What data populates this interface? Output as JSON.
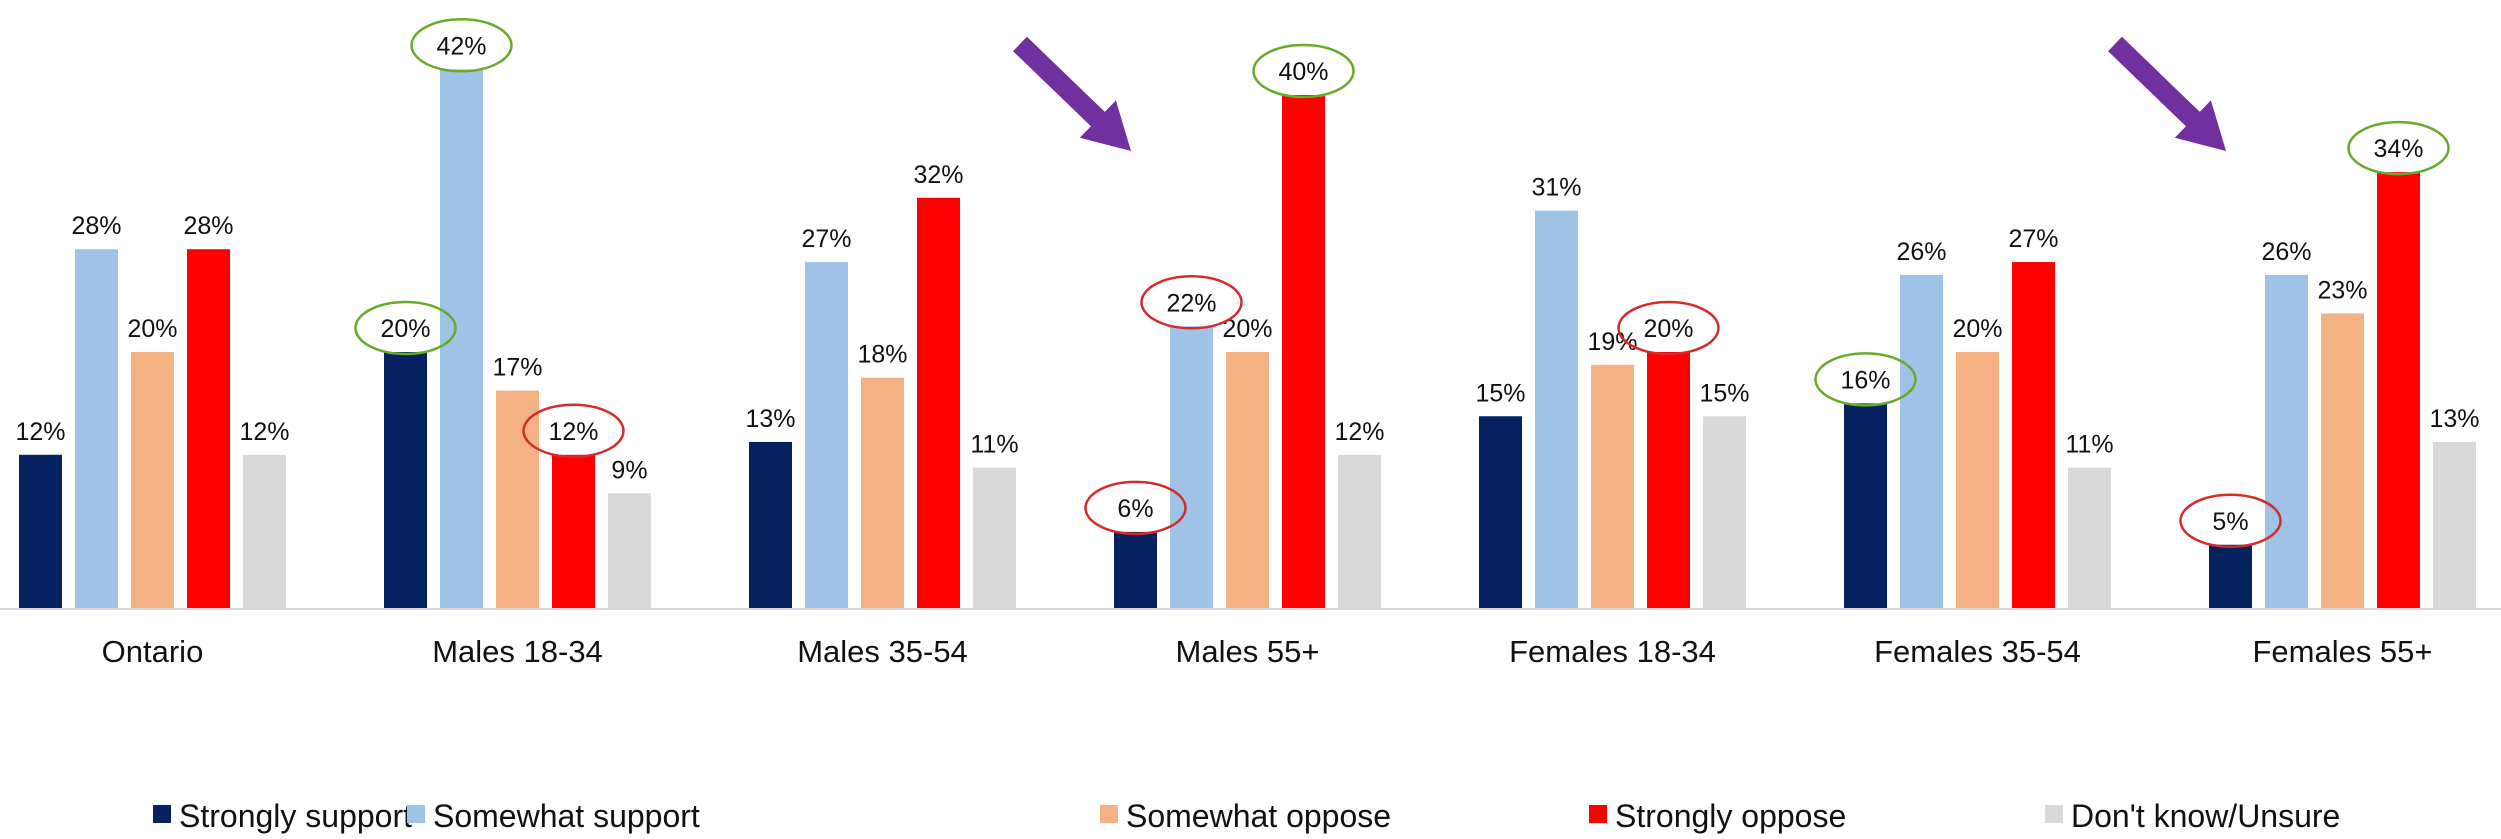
{
  "chart_data": {
    "type": "bar",
    "categories": [
      "Ontario",
      "Males 18-34",
      "Males 35-54",
      "Males 55+",
      "Females 18-34",
      "Females 35-54",
      "Females 55+"
    ],
    "series": [
      {
        "name": "Strongly support",
        "color": "#06215f",
        "values": [
          12,
          20,
          13,
          6,
          15,
          16,
          5
        ],
        "labels": [
          "12%",
          "20%",
          "13%",
          "6%",
          "15%",
          "16%",
          "5%"
        ]
      },
      {
        "name": "Somewhat support",
        "color": "#9fc3e7",
        "values": [
          28,
          42,
          27,
          22,
          31,
          26,
          26
        ],
        "labels": [
          "28%",
          "42%",
          "27%",
          "22%",
          "31%",
          "26%",
          "26%"
        ]
      },
      {
        "name": "Somewhat oppose",
        "color": "#f4b183",
        "values": [
          20,
          17,
          18,
          20,
          19,
          20,
          23
        ],
        "labels": [
          "20%",
          "17%",
          "18%",
          "20%",
          "19%",
          "20%",
          "23%"
        ]
      },
      {
        "name": "Strongly oppose",
        "color": "#ff0000",
        "values": [
          28,
          12,
          32,
          40,
          20,
          27,
          34
        ],
        "labels": [
          "28%",
          "12%",
          "32%",
          "40%",
          "20%",
          "27%",
          "34%"
        ]
      },
      {
        "name": "Don't know/Unsure",
        "color": "#d9d9d9",
        "values": [
          12,
          9,
          11,
          12,
          15,
          11,
          13
        ],
        "labels": [
          "12%",
          "9%",
          "11%",
          "12%",
          "15%",
          "11%",
          "13%"
        ]
      }
    ],
    "ylim": [
      0,
      45
    ],
    "legend_position": "bottom",
    "grid": false,
    "highlights": [
      {
        "category": "Males 18-34",
        "series": "Strongly support",
        "color": "#6aaa2a"
      },
      {
        "category": "Males 18-34",
        "series": "Somewhat support",
        "color": "#6aaa2a"
      },
      {
        "category": "Males 18-34",
        "series": "Strongly oppose",
        "color": "#d62b2b"
      },
      {
        "category": "Males 55+",
        "series": "Strongly support",
        "color": "#d62b2b"
      },
      {
        "category": "Males 55+",
        "series": "Somewhat support",
        "color": "#d62b2b"
      },
      {
        "category": "Males 55+",
        "series": "Strongly oppose",
        "color": "#6aaa2a"
      },
      {
        "category": "Females 18-34",
        "series": "Strongly oppose",
        "color": "#d62b2b"
      },
      {
        "category": "Females 35-54",
        "series": "Strongly support",
        "color": "#6aaa2a"
      },
      {
        "category": "Females 55+",
        "series": "Strongly support",
        "color": "#d62b2b"
      },
      {
        "category": "Females 55+",
        "series": "Strongly oppose",
        "color": "#6aaa2a"
      }
    ],
    "arrows": [
      {
        "category": "Males 55+",
        "color": "#7030a0"
      },
      {
        "category": "Females 55+",
        "color": "#7030a0"
      }
    ]
  }
}
